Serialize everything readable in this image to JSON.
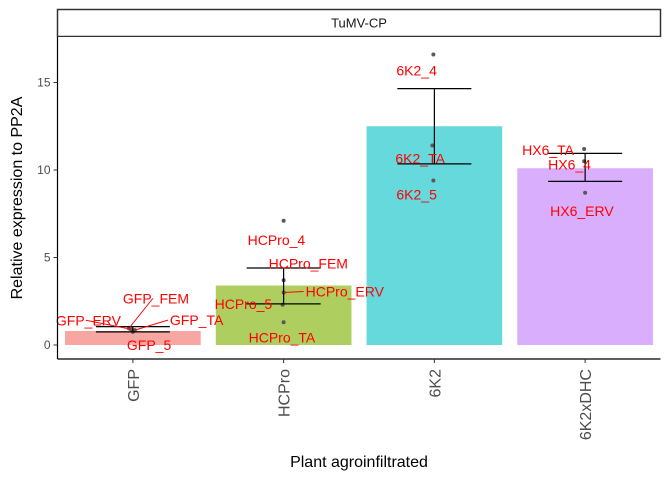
{
  "chart_data": {
    "type": "bar",
    "facet": "TuMV-CP",
    "xlabel": "Plant agroinfiltrated",
    "ylabel": "Relative expression to PP2A",
    "ylim": [
      -0.8,
      17.6
    ],
    "yticks": [
      0,
      5,
      10,
      15
    ],
    "grid": false,
    "categories": [
      "GFP",
      "HCPro",
      "6K2",
      "6K2xDHC"
    ],
    "values": [
      0.8,
      3.4,
      12.5,
      10.1
    ],
    "colors": [
      "#F8A6A1",
      "#AECF60",
      "#66D9DC",
      "#D9AEFD"
    ],
    "error_bars": [
      {
        "low": 0.75,
        "high": 1.05
      },
      {
        "low": 2.35,
        "high": 4.4
      },
      {
        "low": 10.35,
        "high": 14.65
      },
      {
        "low": 9.35,
        "high": 10.95
      }
    ],
    "points": [
      {
        "category": "GFP",
        "label": "GFP_FEM",
        "value": 0.95
      },
      {
        "category": "GFP",
        "label": "GFP_ERV",
        "value": 0.9
      },
      {
        "category": "GFP",
        "label": "GFP_TA",
        "value": 0.85
      },
      {
        "category": "GFP",
        "label": "GFP_5",
        "value": 0.75
      },
      {
        "category": "HCPro",
        "label": "HCPro_4",
        "value": 7.1
      },
      {
        "category": "HCPro",
        "label": "HCPro_FEM",
        "value": 3.7
      },
      {
        "category": "HCPro",
        "label": "HCPro_ERV",
        "value": 3.0
      },
      {
        "category": "HCPro",
        "label": "HCPro_5",
        "value": 2.3
      },
      {
        "category": "HCPro",
        "label": "HCPro_TA",
        "value": 1.3
      },
      {
        "category": "6K2",
        "label": "6K2_4",
        "value": 16.6
      },
      {
        "category": "6K2",
        "label": "6K2_TA",
        "value": 11.4
      },
      {
        "category": "6K2",
        "label": "6K2_5",
        "value": 9.4
      },
      {
        "category": "6K2xDHC",
        "label": "HX6_TA",
        "value": 11.2
      },
      {
        "category": "6K2xDHC",
        "label": "HX6_4",
        "value": 10.5
      },
      {
        "category": "6K2xDHC",
        "label": "HX6_ERV",
        "value": 8.7
      }
    ]
  }
}
